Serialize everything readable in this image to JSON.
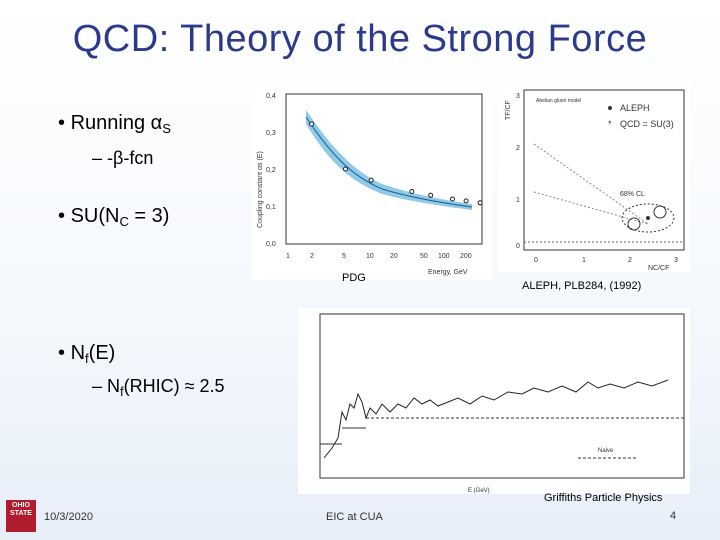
{
  "slide": {
    "title": "QCD: Theory of the Strong Force",
    "bullets": {
      "b1_main": "Running ",
      "b1_alpha": "α",
      "b1_sub": "S",
      "b1_dash": "– -β-fcn",
      "b2_main": "SU(N",
      "b2_sub": "C",
      "b2_tail": " = 3)",
      "b3_main": "N",
      "b3_sub": "f",
      "b3_tail": "(E)",
      "b3_dash_main": "– N",
      "b3_dash_sub": "f",
      "b3_dash_tail": "(RHIC) ≈ 2.5"
    },
    "captions": {
      "pdg": "PDG",
      "aleph": "ALEPH, PLB284, (1992)",
      "griffiths": "Griffiths Particle Physics"
    },
    "footer": {
      "date": "10/3/2020",
      "center": "EIC at CUA",
      "page": "4"
    },
    "logo": {
      "line1": "OHIO",
      "line2": "STATE"
    }
  },
  "plot_alpha": {
    "yticks": [
      "0,4",
      "0,3",
      "0,2",
      "0,1",
      "0,0"
    ],
    "xticks": [
      "1",
      "2",
      "5",
      "10",
      "20",
      "50",
      "100",
      "200"
    ],
    "ylabel": "Coupling constant αs (E)",
    "xlabel": "Energy, GeV"
  },
  "plot_aleph": {
    "legend1": "ALEPH",
    "legend2": "QCD = SU(3)",
    "cl_label": "68% CL",
    "top_note": "Abelian gluon model",
    "yticks": [
      "3",
      "2",
      "1",
      "0"
    ],
    "xticks": [
      "0",
      "1",
      "2",
      "3"
    ],
    "ylabel": "TF/CF",
    "xlabel": "NC/CF"
  },
  "plot_r": {
    "xlabel": "E (GeV)",
    "note": "Naive"
  },
  "chart_data": [
    {
      "type": "scatter",
      "title": "",
      "xlabel": "Energy, GeV",
      "ylabel": "Coupling constant αs (E)",
      "x": [
        2,
        5,
        10,
        30,
        50,
        90,
        130,
        190
      ],
      "values": [
        0.32,
        0.2,
        0.17,
        0.14,
        0.13,
        0.12,
        0.115,
        0.11
      ],
      "xlim": [
        1,
        200
      ],
      "ylim": [
        0.0,
        0.4
      ],
      "xscale": "log"
    }
  ]
}
